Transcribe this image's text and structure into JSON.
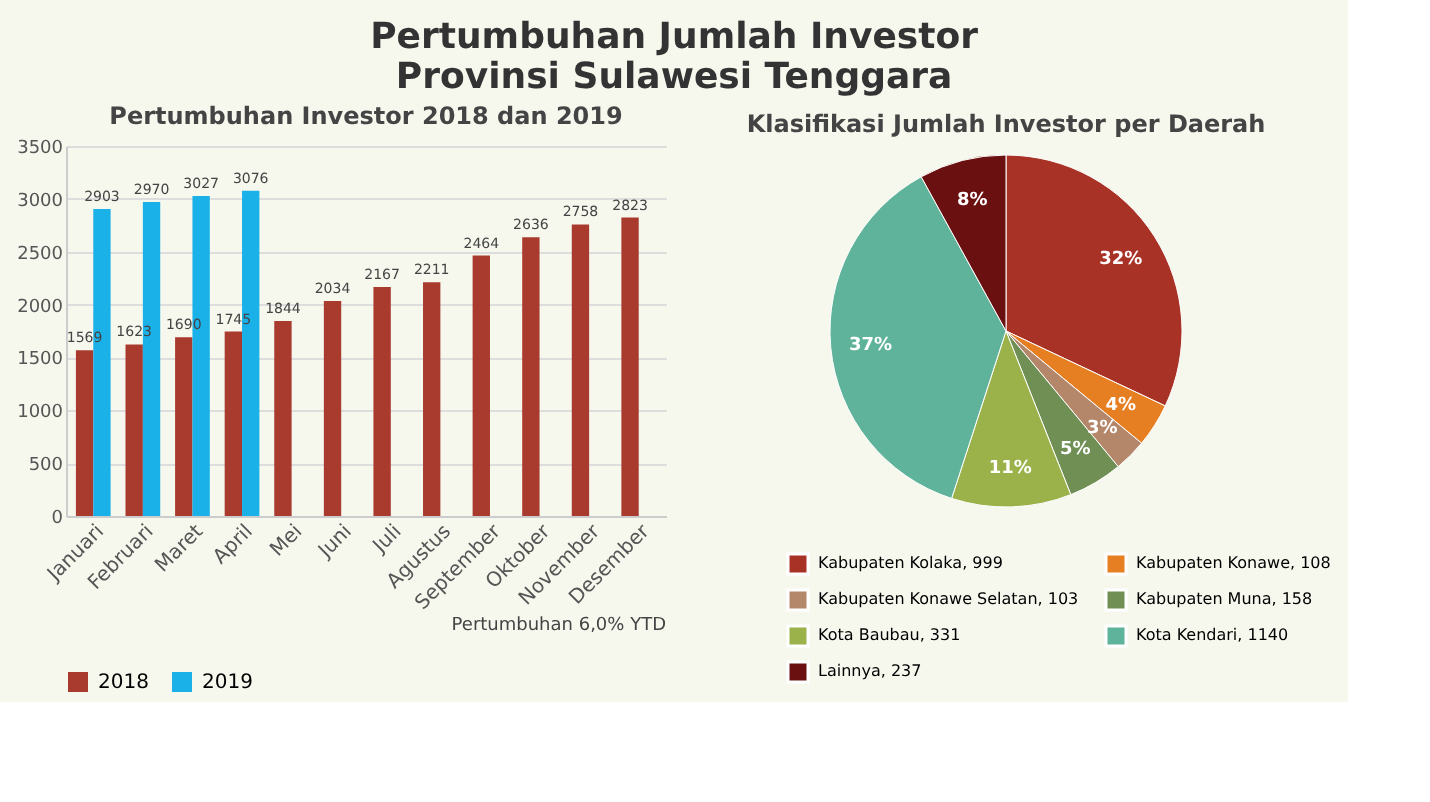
{
  "chart_data": [
    {
      "type": "bar",
      "title": "Pertumbuhan Jumlah Investor\nProvinsi Sulawesi Tenggara",
      "subtitle": "Pertumbuhan Investor 2018 dan 2019",
      "categories": [
        "Januari",
        "Februari",
        "Maret",
        "April",
        "Mei",
        "Juni",
        "Juli",
        "Agustus",
        "September",
        "Oktober",
        "November",
        "Desember"
      ],
      "series": [
        {
          "name": "2018",
          "color": "#a93a2e",
          "values": [
            1569,
            1623,
            1690,
            1745,
            1844,
            2034,
            2167,
            2211,
            2464,
            2636,
            2758,
            2823
          ]
        },
        {
          "name": "2019",
          "color": "#1ab0e8",
          "values": [
            2903,
            2970,
            3027,
            3076,
            null,
            null,
            null,
            null,
            null,
            null,
            null,
            null
          ]
        }
      ],
      "ylim": [
        0,
        3500
      ],
      "yticks": [
        0,
        500,
        1000,
        1500,
        2000,
        2500,
        3000,
        3500
      ],
      "grid": "y",
      "legend": "bottom",
      "data_labels": true,
      "annotations": [
        "Pertumbuhan 6,0% YTD"
      ]
    },
    {
      "type": "pie",
      "title": "Klasifikasi Jumlah Investor per Daerah",
      "categories": [
        "Kabupaten Kolaka, 999",
        "Kabupaten Konawe, 108",
        "Kabupaten Konawe Selatan, 103",
        "Kabupaten Muna, 158",
        "Kota Baubau, 331",
        "Kota Kendari, 1140",
        "Lainnya, 237"
      ],
      "values": [
        32,
        4,
        3,
        5,
        11,
        37,
        8
      ],
      "colors": [
        "#a93226",
        "#e67e22",
        "#b5876a",
        "#6f8f55",
        "#9bb24a",
        "#5fb39a",
        "#6b1010"
      ],
      "legend": "bottom",
      "value_labels": [
        "32%",
        "4%",
        "3%",
        "5%",
        "11%",
        "37%",
        "8%"
      ]
    }
  ]
}
